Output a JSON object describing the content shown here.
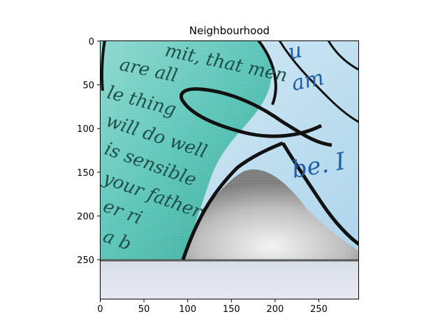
{
  "figure": {
    "title": "Neighbourhood"
  },
  "image": {
    "description": "Close-up of a book page with overlapping cut paper pieces outlined in black ink; teal-tinted and light-blue printed text, grey paper fold at bottom, plain paper strip below.",
    "visible_text_fragments": [
      "mit, that men",
      "are all",
      "le thing",
      "will do well",
      "is sensible",
      "your father",
      "er ri",
      "a b",
      "be. I",
      "am",
      "u"
    ]
  },
  "axes": {
    "x": {
      "range": [
        0,
        295
      ],
      "ticks": [
        "0",
        "50",
        "100",
        "150",
        "200",
        "250"
      ]
    },
    "y": {
      "range": [
        0,
        295
      ],
      "inverted": true,
      "ticks": [
        "0",
        "50",
        "100",
        "150",
        "200",
        "250"
      ]
    }
  }
}
